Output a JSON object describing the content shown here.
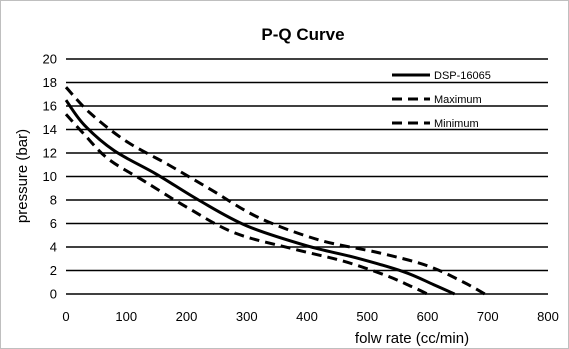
{
  "chart_data": {
    "type": "line",
    "title": "P-Q Curve",
    "xlabel": "folw rate (cc/min)",
    "ylabel": "pressure (bar)",
    "xlim": [
      0,
      800
    ],
    "ylim": [
      0,
      20
    ],
    "x_ticks": [
      0,
      100,
      200,
      300,
      400,
      500,
      600,
      700,
      800
    ],
    "y_ticks": [
      0,
      2,
      4,
      6,
      8,
      10,
      12,
      14,
      16,
      18,
      20
    ],
    "grid": "horizontal",
    "legend_position": "top-right",
    "series": [
      {
        "name": "DSP-16065",
        "style": "solid",
        "points": [
          [
            0,
            16.5
          ],
          [
            30,
            14.4
          ],
          [
            80,
            12.2
          ],
          [
            150,
            10.2
          ],
          [
            220,
            8.0
          ],
          [
            300,
            5.8
          ],
          [
            400,
            4.1
          ],
          [
            480,
            3.1
          ],
          [
            560,
            1.9
          ],
          [
            610,
            0.8
          ],
          [
            645,
            0
          ]
        ]
      },
      {
        "name": "Maximum",
        "style": "dashed",
        "points": [
          [
            0,
            17.6
          ],
          [
            40,
            15.4
          ],
          [
            100,
            13.0
          ],
          [
            170,
            11.0
          ],
          [
            240,
            8.9
          ],
          [
            320,
            6.5
          ],
          [
            420,
            4.6
          ],
          [
            520,
            3.5
          ],
          [
            600,
            2.4
          ],
          [
            660,
            1.0
          ],
          [
            695,
            0
          ]
        ]
      },
      {
        "name": "Minimum",
        "style": "dashed",
        "points": [
          [
            0,
            15.3
          ],
          [
            30,
            13.6
          ],
          [
            70,
            11.5
          ],
          [
            130,
            9.6
          ],
          [
            200,
            7.4
          ],
          [
            280,
            5.2
          ],
          [
            380,
            3.8
          ],
          [
            460,
            2.8
          ],
          [
            530,
            1.6
          ],
          [
            575,
            0.6
          ],
          [
            600,
            0
          ]
        ]
      }
    ]
  }
}
